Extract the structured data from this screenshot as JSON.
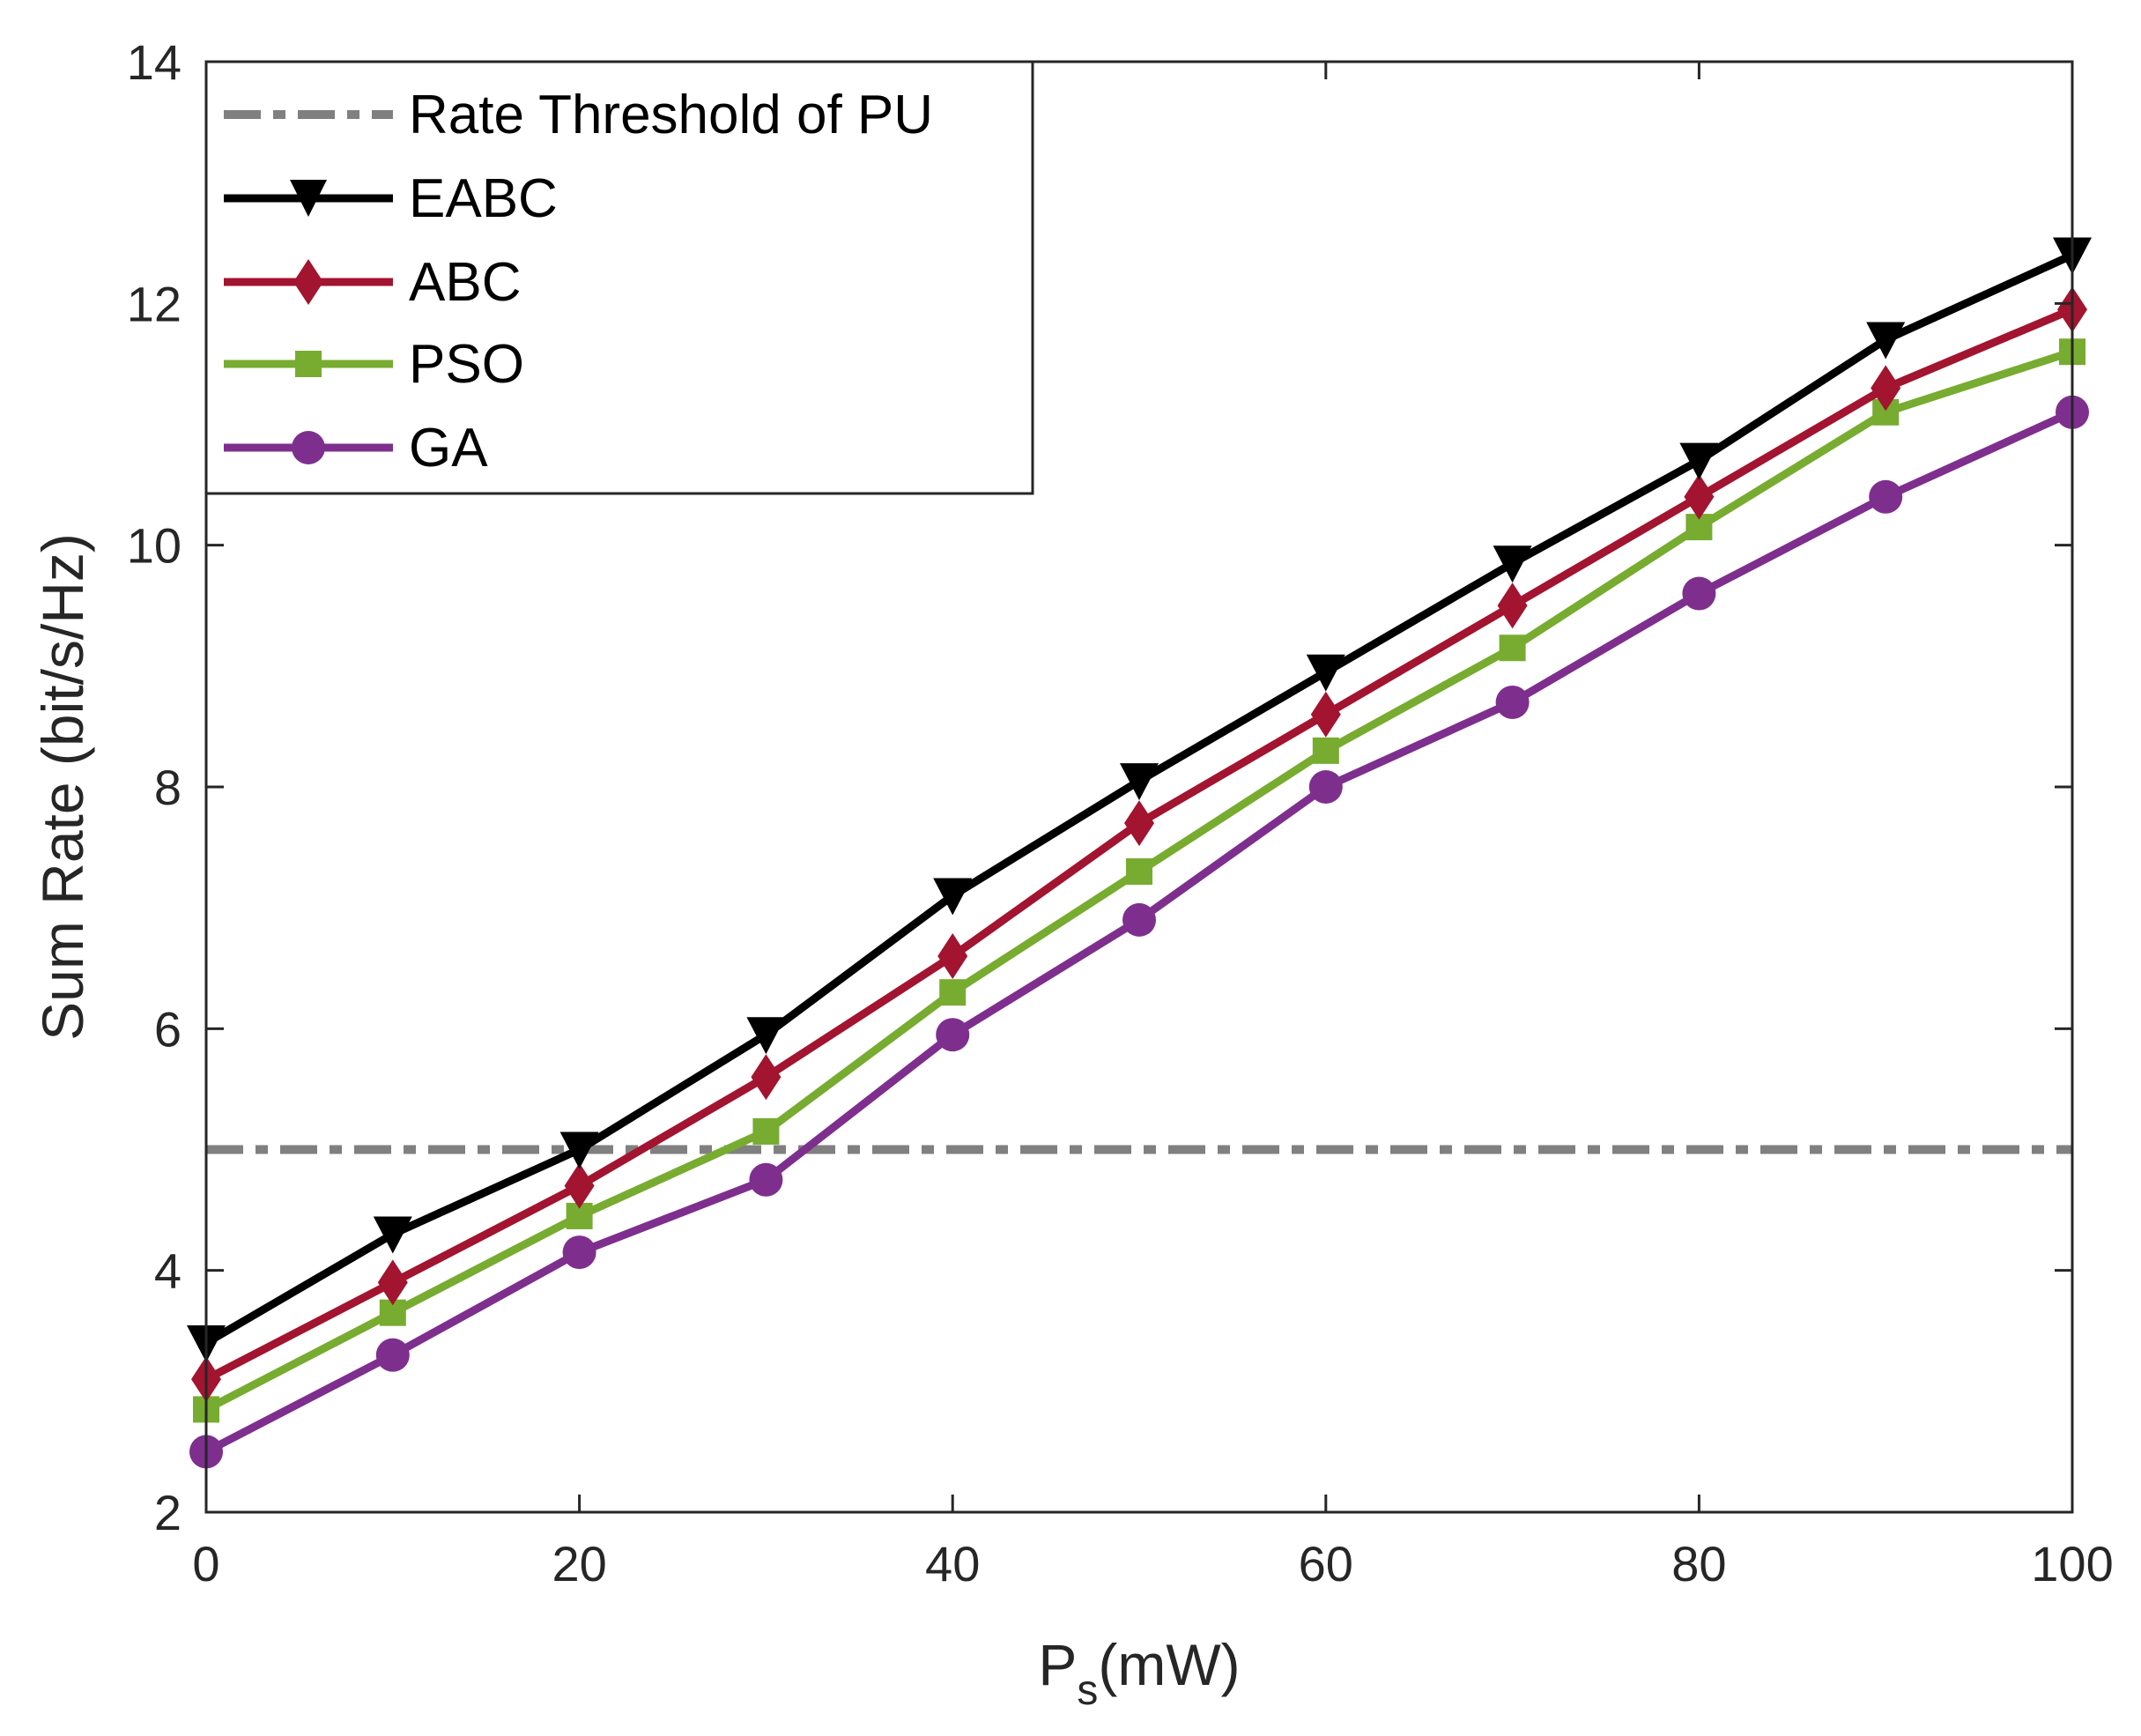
{
  "chart_data": {
    "type": "line",
    "title": "",
    "xlabel": {
      "main": "P",
      "subscript": "s",
      "unit": "(mW)"
    },
    "ylabel": "Sum Rate (bit/s/Hz)",
    "xlim": [
      0,
      100
    ],
    "ylim": [
      2,
      14
    ],
    "xticks": [
      0,
      20,
      40,
      60,
      80,
      100
    ],
    "yticks": [
      2,
      4,
      6,
      8,
      10,
      12,
      14
    ],
    "grid": false,
    "legend_position": "top-left",
    "x": [
      0,
      10,
      20,
      30,
      40,
      50,
      60,
      70,
      80,
      90,
      100
    ],
    "threshold": {
      "name": "Rate Threshold of PU",
      "value": 5,
      "color": "#808080",
      "style": "dash-dot"
    },
    "series": [
      {
        "name": "EABC",
        "color": "#000000",
        "marker": "triangle-down",
        "values": [
          3.4,
          4.3,
          5.0,
          5.95,
          7.1,
          8.05,
          8.95,
          9.85,
          10.7,
          11.7,
          12.4
        ]
      },
      {
        "name": "ABC",
        "color": "#A2142F",
        "marker": "diamond",
        "values": [
          3.1,
          3.9,
          4.7,
          5.6,
          6.6,
          7.7,
          8.6,
          9.5,
          10.4,
          11.3,
          11.95
        ]
      },
      {
        "name": "PSO",
        "color": "#77AC30",
        "marker": "square",
        "values": [
          2.85,
          3.65,
          4.45,
          5.15,
          6.3,
          7.3,
          8.3,
          9.15,
          10.15,
          11.1,
          11.6
        ]
      },
      {
        "name": "GA",
        "color": "#7E2F8E",
        "marker": "circle",
        "values": [
          2.5,
          3.3,
          4.15,
          4.75,
          5.95,
          6.9,
          8.0,
          8.7,
          9.6,
          10.4,
          11.1
        ]
      }
    ]
  }
}
